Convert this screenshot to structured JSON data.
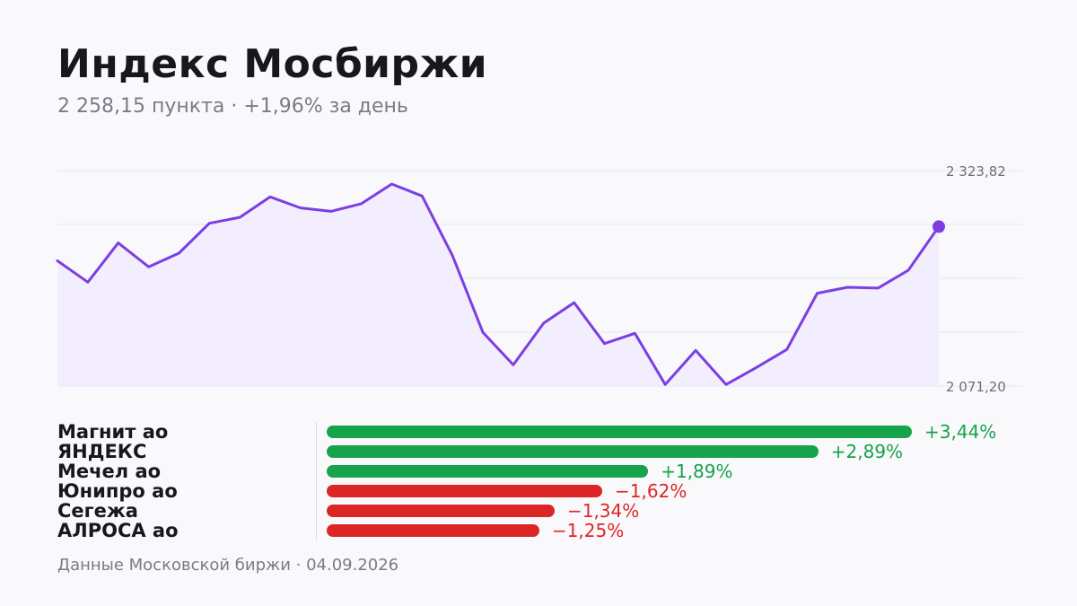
{
  "header": {
    "title": "Индекс Мосбиржи",
    "subtitle": "2 258,15 пункта · +1,96% за день"
  },
  "footer": {
    "source": "Данные Московской биржи · 04.09.2026"
  },
  "colors": {
    "line": "#7b3fe4",
    "area": "#f3eefd",
    "positive": "#16a34a",
    "negative": "#dc2626",
    "grid": "#e6e6ec"
  },
  "chart_data": [
    {
      "type": "area",
      "title": "Индекс Мосбиржи",
      "y_tick_labels": [
        "2 323,82",
        "2 071,20"
      ],
      "ylim": [
        2071.2,
        2323.82
      ],
      "grid": true,
      "values": [
        2218,
        2193,
        2239,
        2211,
        2227,
        2262,
        2269,
        2293,
        2280,
        2276,
        2285,
        2308,
        2294,
        2224,
        2134,
        2096,
        2145,
        2169,
        2121,
        2133,
        2073,
        2113,
        2073,
        2093,
        2114,
        2180,
        2187,
        2186,
        2207,
        2258.15
      ]
    },
    {
      "type": "bar",
      "orientation": "horizontal",
      "categories": [
        "Магнит ао",
        "ЯНДЕКС",
        "Мечел ао",
        "Юнипро ао",
        "Сегежа",
        "АЛРОСА ао"
      ],
      "values": [
        3.44,
        2.89,
        1.89,
        -1.62,
        -1.34,
        -1.25
      ],
      "value_labels": [
        "+3,44%",
        "+2,89%",
        "+1,89%",
        "−1,62%",
        "−1,34%",
        "−1,25%"
      ]
    }
  ]
}
